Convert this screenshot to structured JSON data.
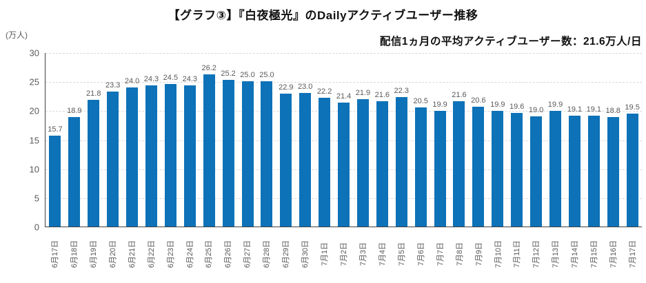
{
  "header": {
    "title": "【グラフ③】『白夜極光』のDailyアクティブユーザー推移",
    "subtitle": "配信1ヵ月の平均アクティブユーザー数：21.6万人/日"
  },
  "colors": {
    "bar": "#0d72b8",
    "text_muted": "#595959",
    "grid": "#d9d9d9",
    "axis": "#404040",
    "title_text": "#111111"
  },
  "chart_data": {
    "type": "bar",
    "title": "【グラフ③】『白夜極光』のDailyアクティブユーザー推移",
    "annotation": "配信1ヵ月の平均アクティブユーザー数：21.6万人/日",
    "ylabel": "(万人)",
    "xlabel": "",
    "ylim": [
      0,
      30
    ],
    "yticks": [
      0,
      5,
      10,
      15,
      20,
      25,
      30
    ],
    "grid": "horizontal-dashed",
    "legend": "none",
    "value_label_decimals": 1,
    "categories": [
      "6月17日",
      "6月18日",
      "6月19日",
      "6月20日",
      "6月21日",
      "6月22日",
      "6月23日",
      "6月24日",
      "6月25日",
      "6月26日",
      "6月27日",
      "6月28日",
      "6月29日",
      "6月30日",
      "7月1日",
      "7月2日",
      "7月3日",
      "7月4日",
      "7月5日",
      "7月6日",
      "7月7日",
      "7月8日",
      "7月9日",
      "7月10日",
      "7月11日",
      "7月12日",
      "7月13日",
      "7月14日",
      "7月15日",
      "7月16日",
      "7月17日"
    ],
    "values": [
      15.7,
      18.9,
      21.8,
      23.3,
      24.0,
      24.3,
      24.5,
      24.3,
      26.2,
      25.2,
      25.0,
      25.0,
      22.9,
      23.0,
      22.2,
      21.4,
      21.9,
      21.6,
      22.3,
      20.5,
      19.9,
      21.6,
      20.6,
      19.9,
      19.6,
      19.0,
      19.9,
      19.1,
      19.1,
      18.8,
      19.5
    ]
  }
}
